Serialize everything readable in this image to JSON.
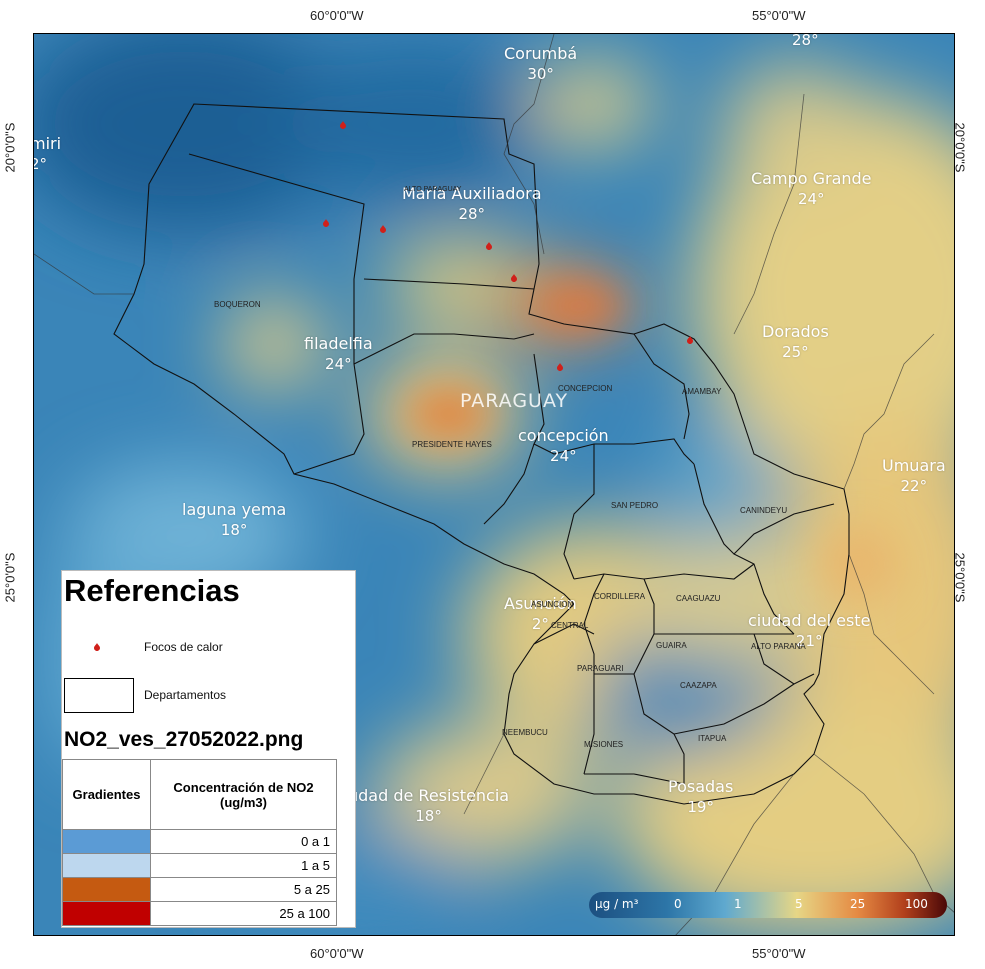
{
  "frame": {
    "top_labels": [
      "60°0'0\"W",
      "55°0'0\"W"
    ],
    "bottom_labels": [
      "60°0'0\"W",
      "55°0'0\"W"
    ],
    "left_labels": [
      "20°0'0\"S",
      "25°0'0\"S"
    ],
    "right_labels": [
      "20°0'0\"S",
      "25°0'0\"S"
    ]
  },
  "country_label": "PARAGUAY",
  "cities": [
    {
      "name": "Corumbá",
      "temp": "30°"
    },
    {
      "name": "María Auxiliadora",
      "temp": "28°"
    },
    {
      "name": "Campo Grande",
      "temp": "24°"
    },
    {
      "name": "filadelfia",
      "temp": "24°"
    },
    {
      "name": "Dorados",
      "temp": "25°"
    },
    {
      "name": "concepción",
      "temp": "24°"
    },
    {
      "name": "Umuara",
      "temp": "22°"
    },
    {
      "name": "laguna yema",
      "temp": "18°"
    },
    {
      "name": "ciudad del este",
      "temp": "21°"
    },
    {
      "name": "udad de Resistencia",
      "temp": "18°"
    },
    {
      "name": "Posadas",
      "temp": "19°"
    },
    {
      "name": "miri",
      "temp": "2°"
    },
    {
      "name": "Asunción",
      "temp": "2°"
    },
    {
      "name": "",
      "temp": "28°"
    }
  ],
  "departments": [
    "BOQUERON",
    "PRESIDENTE HAYES",
    "CONCEPCION",
    "AMAMBAY",
    "SAN PEDRO",
    "CANINDEYU",
    "CORDILLERA",
    "ASUNCION",
    "CENTRAL",
    "CAAGUAZU",
    "ALTO PARANA",
    "GUAIRA",
    "CAAZAPA",
    "PARAGUARI",
    "NEEMBUCU",
    "MISIONES",
    "ITAPUA",
    "ALTO PARAGUAY"
  ],
  "legend": {
    "title": "Referencias",
    "fire_label": "Focos de calor",
    "dept_label": "Departamentos",
    "file_name": "NO2_ves_27052022.png",
    "col_gradients": "Gradientes",
    "col_concentration": "Concentración de NO2 (ug/m3)",
    "rows": [
      {
        "range": "0 a 1",
        "color": "#5b9bd5"
      },
      {
        "range": "1 a 5",
        "color": "#bdd7ee"
      },
      {
        "range": "5 a 25",
        "color": "#c55a11"
      },
      {
        "range": "25 a 100",
        "color": "#c00000"
      }
    ]
  },
  "colorbar": {
    "unit": "μg / m³",
    "ticks": [
      "0",
      "1",
      "5",
      "25",
      "100"
    ],
    "colors": [
      "#1f5f8b",
      "#4aa3c9",
      "#e8d987",
      "#e07b39",
      "#5a0a0a"
    ]
  },
  "colors": {
    "sea_blue": "#2f7bb1",
    "light_blue": "#6db3d8",
    "yellow": "#e6cf7a",
    "orange": "#de8a45",
    "fire_red": "#d0201a"
  }
}
